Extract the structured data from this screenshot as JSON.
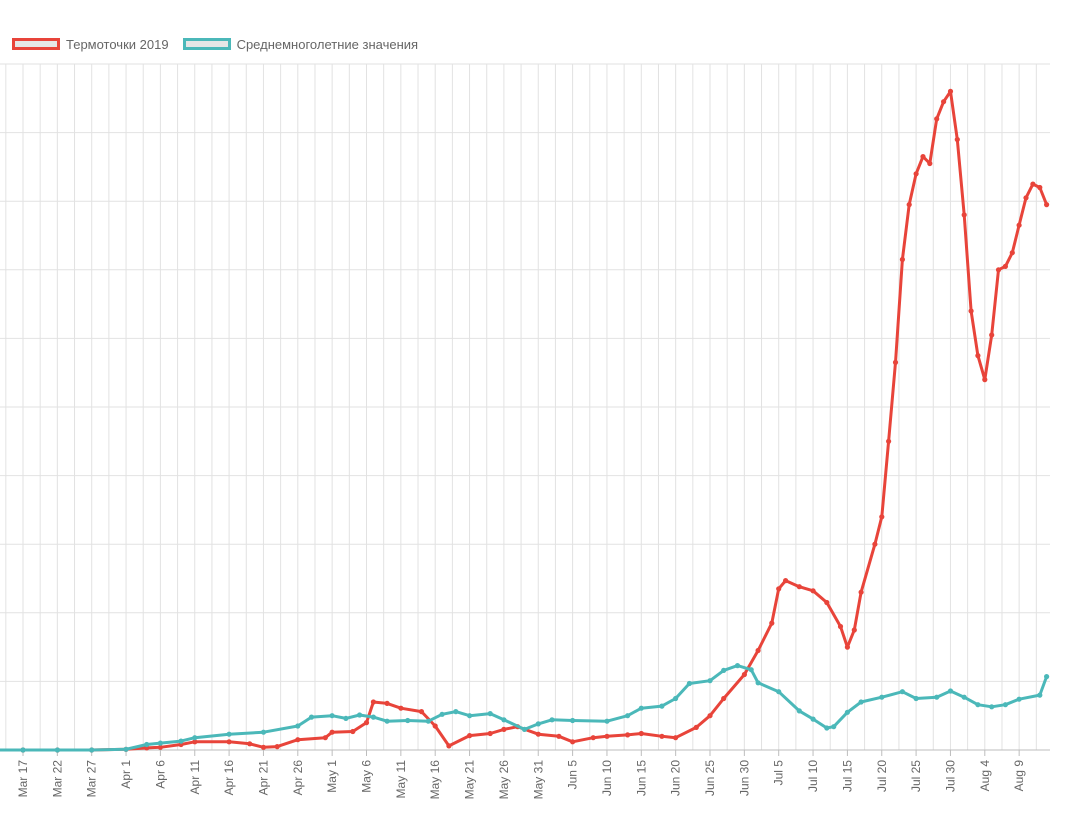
{
  "chart_data": {
    "type": "line",
    "title": "",
    "xlabel": "",
    "ylabel": "",
    "ylim": [
      0,
      100
    ],
    "grid": true,
    "legend_position": "top-left",
    "x_tick_labels": [
      "Mar 17",
      "Mar 22",
      "Mar 27",
      "Apr 1",
      "Apr 6",
      "Apr 11",
      "Apr 16",
      "Apr 21",
      "Apr 26",
      "May 1",
      "May 6",
      "May 11",
      "May 16",
      "May 21",
      "May 26",
      "May 31",
      "Jun 5",
      "Jun 10",
      "Jun 15",
      "Jun 20",
      "Jun 25",
      "Jun 30",
      "Jul 5",
      "Jul 10",
      "Jul 15",
      "Jul 20",
      "Jul 25",
      "Jul 30",
      "Aug 4",
      "Aug 9"
    ],
    "series": [
      {
        "name": "Термоточки 2019",
        "color": "#e8443a",
        "points": [
          [
            "Mar 12",
            0
          ],
          [
            "Mar 17",
            0
          ],
          [
            "Mar 22",
            0
          ],
          [
            "Mar 27",
            0
          ],
          [
            "Apr 1",
            0.1
          ],
          [
            "Apr 4",
            0.3
          ],
          [
            "Apr 6",
            0.4
          ],
          [
            "Apr 9",
            0.8
          ],
          [
            "Apr 11",
            1.2
          ],
          [
            "Apr 16",
            1.2
          ],
          [
            "Apr 19",
            0.9
          ],
          [
            "Apr 21",
            0.4
          ],
          [
            "Apr 23",
            0.5
          ],
          [
            "Apr 26",
            1.5
          ],
          [
            "Apr 30",
            1.8
          ],
          [
            "May 1",
            2.6
          ],
          [
            "May 4",
            2.7
          ],
          [
            "May 6",
            4.0
          ],
          [
            "May 7",
            7.0
          ],
          [
            "May 9",
            6.8
          ],
          [
            "May 11",
            6.1
          ],
          [
            "May 14",
            5.6
          ],
          [
            "May 16",
            3.5
          ],
          [
            "May 18",
            0.6
          ],
          [
            "May 21",
            2.1
          ],
          [
            "May 24",
            2.4
          ],
          [
            "May 26",
            3.0
          ],
          [
            "May 28",
            3.4
          ],
          [
            "May 31",
            2.3
          ],
          [
            "Jun 3",
            2.0
          ],
          [
            "Jun 5",
            1.2
          ],
          [
            "Jun 8",
            1.8
          ],
          [
            "Jun 10",
            2.0
          ],
          [
            "Jun 13",
            2.2
          ],
          [
            "Jun 15",
            2.4
          ],
          [
            "Jun 18",
            2.0
          ],
          [
            "Jun 20",
            1.8
          ],
          [
            "Jun 23",
            3.3
          ],
          [
            "Jun 25",
            5.0
          ],
          [
            "Jun 27",
            7.5
          ],
          [
            "Jun 30",
            11.0
          ],
          [
            "Jul 2",
            14.5
          ],
          [
            "Jul 4",
            18.5
          ],
          [
            "Jul 5",
            23.5
          ],
          [
            "Jul 6",
            24.7
          ],
          [
            "Jul 8",
            23.8
          ],
          [
            "Jul 10",
            23.2
          ],
          [
            "Jul 12",
            21.5
          ],
          [
            "Jul 14",
            18.0
          ],
          [
            "Jul 15",
            15.0
          ],
          [
            "Jul 16",
            17.5
          ],
          [
            "Jul 17",
            23.0
          ],
          [
            "Jul 19",
            30.0
          ],
          [
            "Jul 20",
            34.0
          ],
          [
            "Jul 21",
            45.0
          ],
          [
            "Jul 22",
            56.5
          ],
          [
            "Jul 23",
            71.5
          ],
          [
            "Jul 24",
            79.5
          ],
          [
            "Jul 25",
            84.0
          ],
          [
            "Jul 26",
            86.5
          ],
          [
            "Jul 27",
            85.5
          ],
          [
            "Jul 28",
            92.0
          ],
          [
            "Jul 29",
            94.5
          ],
          [
            "Jul 30",
            96.0
          ],
          [
            "Jul 31",
            89.0
          ],
          [
            "Aug 1",
            78.0
          ],
          [
            "Aug 2",
            64.0
          ],
          [
            "Aug 3",
            57.5
          ],
          [
            "Aug 4",
            54.0
          ],
          [
            "Aug 5",
            60.5
          ],
          [
            "Aug 6",
            70.0
          ],
          [
            "Aug 7",
            70.5
          ],
          [
            "Aug 8",
            72.5
          ],
          [
            "Aug 9",
            76.5
          ],
          [
            "Aug 10",
            80.5
          ],
          [
            "Aug 11",
            82.5
          ],
          [
            "Aug 12",
            82.0
          ],
          [
            "Aug 13",
            79.5
          ]
        ]
      },
      {
        "name": "Среднемноголетние значения",
        "color": "#4bb8b9",
        "points": [
          [
            "Mar 12",
            0
          ],
          [
            "Mar 17",
            0
          ],
          [
            "Mar 22",
            0
          ],
          [
            "Mar 27",
            0
          ],
          [
            "Apr 1",
            0.1
          ],
          [
            "Apr 4",
            0.8
          ],
          [
            "Apr 6",
            1.0
          ],
          [
            "Apr 9",
            1.3
          ],
          [
            "Apr 11",
            1.8
          ],
          [
            "Apr 16",
            2.3
          ],
          [
            "Apr 21",
            2.6
          ],
          [
            "Apr 26",
            3.5
          ],
          [
            "Apr 28",
            4.8
          ],
          [
            "May 1",
            5.0
          ],
          [
            "May 3",
            4.6
          ],
          [
            "May 5",
            5.1
          ],
          [
            "May 7",
            4.8
          ],
          [
            "May 9",
            4.2
          ],
          [
            "May 12",
            4.3
          ],
          [
            "May 15",
            4.2
          ],
          [
            "May 17",
            5.2
          ],
          [
            "May 19",
            5.6
          ],
          [
            "May 21",
            5.0
          ],
          [
            "May 24",
            5.3
          ],
          [
            "May 26",
            4.4
          ],
          [
            "May 29",
            3.0
          ],
          [
            "May 31",
            3.8
          ],
          [
            "Jun 2",
            4.4
          ],
          [
            "Jun 5",
            4.3
          ],
          [
            "Jun 10",
            4.2
          ],
          [
            "Jun 13",
            5.0
          ],
          [
            "Jun 15",
            6.1
          ],
          [
            "Jun 18",
            6.4
          ],
          [
            "Jun 20",
            7.5
          ],
          [
            "Jun 22",
            9.7
          ],
          [
            "Jun 25",
            10.1
          ],
          [
            "Jun 27",
            11.6
          ],
          [
            "Jun 29",
            12.3
          ],
          [
            "Jul 1",
            11.7
          ],
          [
            "Jul 2",
            9.8
          ],
          [
            "Jul 5",
            8.5
          ],
          [
            "Jul 8",
            5.7
          ],
          [
            "Jul 10",
            4.5
          ],
          [
            "Jul 12",
            3.2
          ],
          [
            "Jul 13",
            3.4
          ],
          [
            "Jul 15",
            5.5
          ],
          [
            "Jul 17",
            7.0
          ],
          [
            "Jul 20",
            7.7
          ],
          [
            "Jul 23",
            8.5
          ],
          [
            "Jul 25",
            7.5
          ],
          [
            "Jul 28",
            7.7
          ],
          [
            "Jul 30",
            8.6
          ],
          [
            "Aug 1",
            7.7
          ],
          [
            "Aug 3",
            6.6
          ],
          [
            "Aug 5",
            6.3
          ],
          [
            "Aug 7",
            6.6
          ],
          [
            "Aug 9",
            7.4
          ],
          [
            "Aug 12",
            8.0
          ],
          [
            "Aug 13",
            10.7
          ]
        ]
      }
    ]
  }
}
